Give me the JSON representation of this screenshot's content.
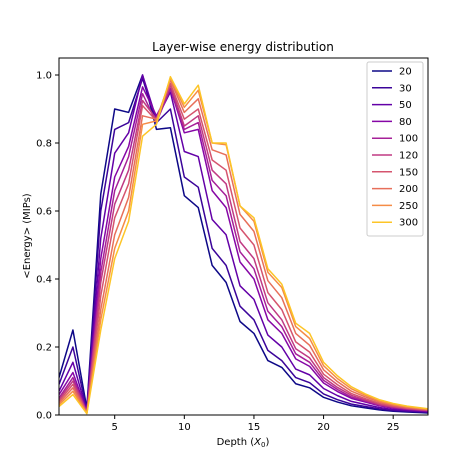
{
  "chart_data": {
    "type": "line",
    "title": "Layer-wise energy distribution",
    "xlabel_main": "Depth (",
    "xlabel_sym": "X",
    "xlabel_sub": "0",
    "xlabel_close": ")",
    "ylabel": "<Energy> (MIPs)",
    "xlim": [
      1,
      27.5
    ],
    "ylim": [
      0,
      1.05
    ],
    "xticks": [
      5,
      10,
      15,
      20,
      25
    ],
    "yticks": [
      0.0,
      0.2,
      0.4,
      0.6,
      0.8,
      1.0
    ],
    "ytick_labels": [
      "0.0",
      "0.2",
      "0.4",
      "0.6",
      "0.8",
      "1.0"
    ],
    "legend_position": "top-right",
    "grid": false,
    "x": [
      1,
      2,
      3,
      4,
      5,
      6,
      7,
      8,
      9,
      10,
      11,
      12,
      13,
      14,
      15,
      16,
      17,
      18,
      19,
      20,
      21,
      22,
      23,
      24,
      25,
      26,
      27,
      28
    ],
    "series": [
      {
        "name": "20",
        "color": "#0d0887",
        "values": [
          0.11,
          0.25,
          0.02,
          0.65,
          0.9,
          0.89,
          1.0,
          0.84,
          0.845,
          0.645,
          0.61,
          0.44,
          0.39,
          0.275,
          0.24,
          0.16,
          0.14,
          0.092,
          0.08,
          0.052,
          0.038,
          0.027,
          0.021,
          0.015,
          0.011,
          0.009,
          0.007,
          0.005
        ]
      },
      {
        "name": "30",
        "color": "#3b049a",
        "values": [
          0.09,
          0.2,
          0.015,
          0.6,
          0.84,
          0.86,
          0.99,
          0.86,
          0.9,
          0.7,
          0.67,
          0.49,
          0.44,
          0.32,
          0.28,
          0.19,
          0.16,
          0.11,
          0.095,
          0.062,
          0.045,
          0.032,
          0.025,
          0.018,
          0.013,
          0.011,
          0.009,
          0.007
        ]
      },
      {
        "name": "50",
        "color": "#6300a7",
        "values": [
          0.07,
          0.155,
          0.012,
          0.52,
          0.77,
          0.83,
          1.0,
          0.87,
          0.95,
          0.775,
          0.76,
          0.575,
          0.53,
          0.38,
          0.34,
          0.235,
          0.2,
          0.135,
          0.118,
          0.078,
          0.057,
          0.04,
          0.031,
          0.022,
          0.016,
          0.013,
          0.011,
          0.008
        ]
      },
      {
        "name": "80",
        "color": "#8606a6",
        "values": [
          0.06,
          0.125,
          0.01,
          0.46,
          0.7,
          0.79,
          0.965,
          0.88,
          0.96,
          0.83,
          0.84,
          0.66,
          0.61,
          0.45,
          0.4,
          0.28,
          0.24,
          0.165,
          0.143,
          0.094,
          0.069,
          0.049,
          0.038,
          0.027,
          0.02,
          0.016,
          0.013,
          0.01
        ]
      },
      {
        "name": "100",
        "color": "#a62098",
        "values": [
          0.05,
          0.11,
          0.009,
          0.42,
          0.66,
          0.76,
          0.945,
          0.86,
          0.96,
          0.84,
          0.86,
          0.69,
          0.645,
          0.48,
          0.43,
          0.305,
          0.26,
          0.18,
          0.155,
          0.102,
          0.075,
          0.053,
          0.041,
          0.029,
          0.022,
          0.017,
          0.014,
          0.011
        ]
      },
      {
        "name": "120",
        "color": "#c03a83",
        "values": [
          0.045,
          0.1,
          0.008,
          0.39,
          0.62,
          0.72,
          0.925,
          0.87,
          0.97,
          0.85,
          0.88,
          0.72,
          0.68,
          0.51,
          0.46,
          0.33,
          0.28,
          0.195,
          0.168,
          0.11,
          0.081,
          0.058,
          0.044,
          0.031,
          0.024,
          0.019,
          0.015,
          0.012
        ]
      },
      {
        "name": "150",
        "color": "#d5546e",
        "values": [
          0.04,
          0.09,
          0.007,
          0.35,
          0.58,
          0.68,
          0.91,
          0.865,
          0.975,
          0.87,
          0.9,
          0.75,
          0.72,
          0.55,
          0.5,
          0.36,
          0.31,
          0.215,
          0.185,
          0.12,
          0.089,
          0.063,
          0.048,
          0.034,
          0.026,
          0.02,
          0.016,
          0.013
        ]
      },
      {
        "name": "200",
        "color": "#e76f5a",
        "values": [
          0.035,
          0.08,
          0.006,
          0.31,
          0.53,
          0.64,
          0.88,
          0.87,
          0.985,
          0.89,
          0.93,
          0.78,
          0.765,
          0.59,
          0.54,
          0.395,
          0.345,
          0.24,
          0.205,
          0.133,
          0.098,
          0.07,
          0.053,
          0.038,
          0.029,
          0.022,
          0.018,
          0.014
        ]
      },
      {
        "name": "250",
        "color": "#f58c46",
        "values": [
          0.03,
          0.07,
          0.005,
          0.28,
          0.49,
          0.6,
          0.855,
          0.865,
          0.99,
          0.905,
          0.955,
          0.8,
          0.795,
          0.615,
          0.57,
          0.42,
          0.375,
          0.26,
          0.225,
          0.145,
          0.107,
          0.077,
          0.058,
          0.041,
          0.031,
          0.024,
          0.019,
          0.015
        ]
      },
      {
        "name": "300",
        "color": "#fdc527",
        "values": [
          0.025,
          0.06,
          0.004,
          0.25,
          0.46,
          0.57,
          0.82,
          0.855,
          0.995,
          0.915,
          0.97,
          0.8,
          0.8,
          0.615,
          0.58,
          0.43,
          0.385,
          0.27,
          0.24,
          0.155,
          0.115,
          0.083,
          0.062,
          0.045,
          0.034,
          0.026,
          0.021,
          0.016
        ]
      }
    ]
  }
}
